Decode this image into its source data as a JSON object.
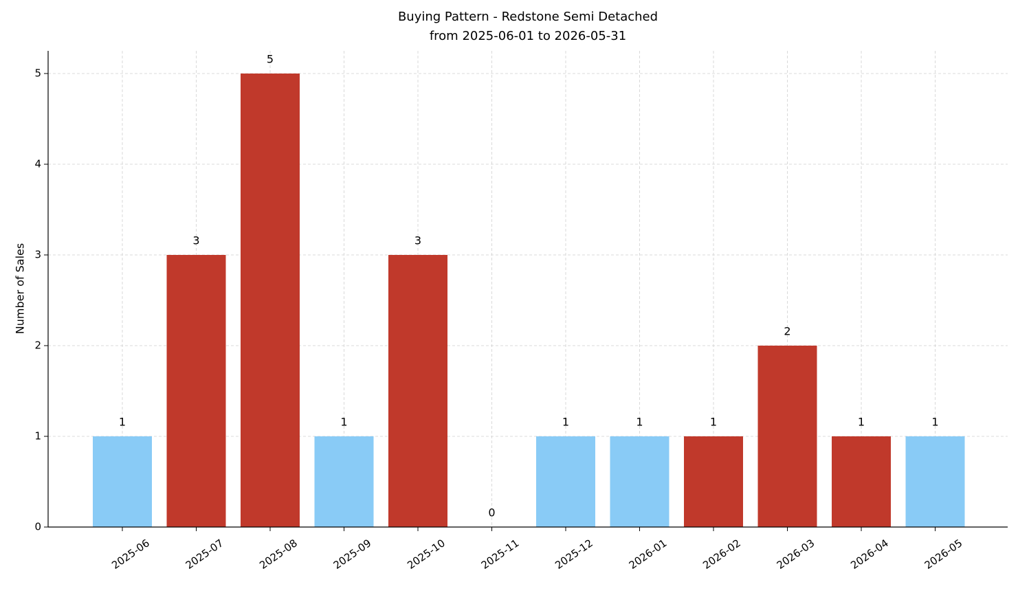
{
  "chart_data": {
    "type": "bar",
    "title": "Buying Pattern - Redstone Semi Detached",
    "subtitle": "from 2025-06-01 to 2026-05-31",
    "y_label": "Number of Sales",
    "categories": [
      "2025-06",
      "2025-07",
      "2025-08",
      "2025-09",
      "2025-10",
      "2025-11",
      "2025-12",
      "2026-01",
      "2026-02",
      "2026-03",
      "2026-04",
      "2026-05"
    ],
    "values": [
      1,
      3,
      5,
      1,
      3,
      0,
      1,
      1,
      1,
      2,
      1,
      1
    ],
    "colors": [
      "#89cbf6",
      "#c0392b",
      "#c0392b",
      "#89cbf6",
      "#c0392b",
      "#89cbf6",
      "#89cbf6",
      "#89cbf6",
      "#c0392b",
      "#c0392b",
      "#c0392b",
      "#89cbf6"
    ],
    "ylim": [
      0,
      5.25
    ],
    "yticks": [
      0,
      1,
      2,
      3,
      4,
      5
    ],
    "grid": true
  }
}
